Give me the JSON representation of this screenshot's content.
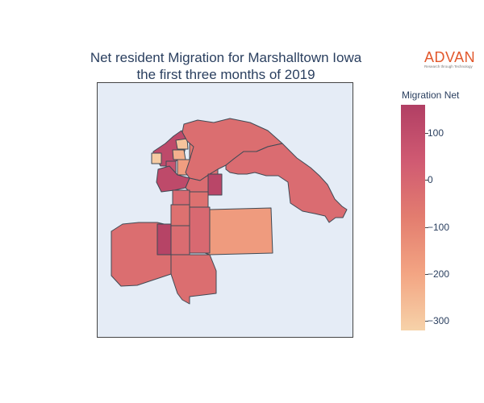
{
  "chart_data": {
    "type": "choropleth",
    "title_line1": "Net resident Migration for Marshalltown Iowa",
    "title_line2": "the first three months of 2019",
    "colorbar": {
      "title": "Migration Net",
      "min": -320,
      "max": 160,
      "ticks": [
        100,
        0,
        -100,
        -200,
        -300
      ],
      "tick_labels": [
        "100",
        "0",
        "−100",
        "−200",
        "−300"
      ],
      "colorscale": [
        "#f6d2a9",
        "#f3a583",
        "#e37d6f",
        "#d05a72",
        "#b13f64"
      ]
    },
    "regions": [
      {
        "name": "northwest-dark",
        "value": 110
      },
      {
        "name": "north-light-1",
        "value": -280
      },
      {
        "name": "north-light-2",
        "value": -230
      },
      {
        "name": "northwest-small-light",
        "value": -300
      },
      {
        "name": "center-north",
        "value": -60
      },
      {
        "name": "center-north-2",
        "value": 20
      },
      {
        "name": "center-light",
        "value": -180
      },
      {
        "name": "center-mid",
        "value": -50
      },
      {
        "name": "center-east-small",
        "value": 70
      },
      {
        "name": "west-dark",
        "value": 110
      },
      {
        "name": "north-big",
        "value": -30
      },
      {
        "name": "east-arm",
        "value": -20
      },
      {
        "name": "center-block-1",
        "value": -20
      },
      {
        "name": "center-block-2",
        "value": -10
      },
      {
        "name": "center-block-3",
        "value": -40
      },
      {
        "name": "dark-east-small",
        "value": 130
      },
      {
        "name": "east-large",
        "value": -170
      },
      {
        "name": "southwest-large",
        "value": -30
      },
      {
        "name": "south-dark",
        "value": 140
      },
      {
        "name": "south-center",
        "value": -40
      },
      {
        "name": "south-center-2",
        "value": -20
      },
      {
        "name": "south-strip",
        "value": -10
      },
      {
        "name": "south-center-3",
        "value": -30
      }
    ]
  },
  "logo": {
    "name": "ADVAN",
    "tagline": "Research through Technology"
  }
}
